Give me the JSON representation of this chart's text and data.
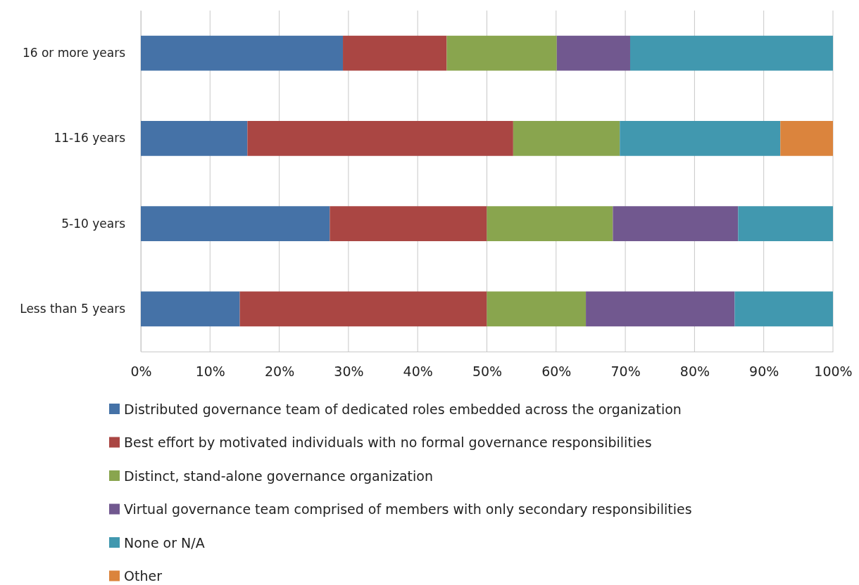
{
  "chart_data": {
    "type": "bar",
    "orientation": "horizontal",
    "stacked": true,
    "categories": [
      "16 or more years",
      "11-16 years",
      "5-10 years",
      "Less than 5 years"
    ],
    "series": [
      {
        "name": "Distributed governance team of dedicated roles embedded across the organization",
        "color": "#4572a7",
        "values": [
          29.2,
          15.4,
          27.3,
          14.3
        ]
      },
      {
        "name": "Best effort by motivated individuals with no formal governance responsibilities",
        "color": "#aa4643",
        "values": [
          15.0,
          38.4,
          22.7,
          35.7
        ]
      },
      {
        "name": "Distinct, stand-alone governance organization",
        "color": "#89a54e",
        "values": [
          15.9,
          15.4,
          18.2,
          14.3
        ]
      },
      {
        "name": "Virtual governance team comprised of members with only secondary responsibilities",
        "color": "#71588f",
        "values": [
          10.6,
          0,
          18.1,
          21.5
        ]
      },
      {
        "name": "None or N/A",
        "color": "#4198af",
        "values": [
          29.3,
          23.2,
          13.7,
          14.2
        ]
      },
      {
        "name": "Other",
        "color": "#db843d",
        "values": [
          0,
          7.6,
          0,
          0
        ]
      }
    ],
    "xlim": [
      0,
      100
    ],
    "xticks": [
      {
        "value": 0,
        "label": "0%"
      },
      {
        "value": 10,
        "label": "10%"
      },
      {
        "value": 20,
        "label": "20%"
      },
      {
        "value": 30,
        "label": "30%"
      },
      {
        "value": 40,
        "label": "40%"
      },
      {
        "value": 50,
        "label": "50%"
      },
      {
        "value": 60,
        "label": "60%"
      },
      {
        "value": 70,
        "label": "70%"
      },
      {
        "value": 80,
        "label": "80%"
      },
      {
        "value": 90,
        "label": "90%"
      },
      {
        "value": 100,
        "label": "100%"
      }
    ],
    "grid": "x",
    "legend": "bottom"
  }
}
